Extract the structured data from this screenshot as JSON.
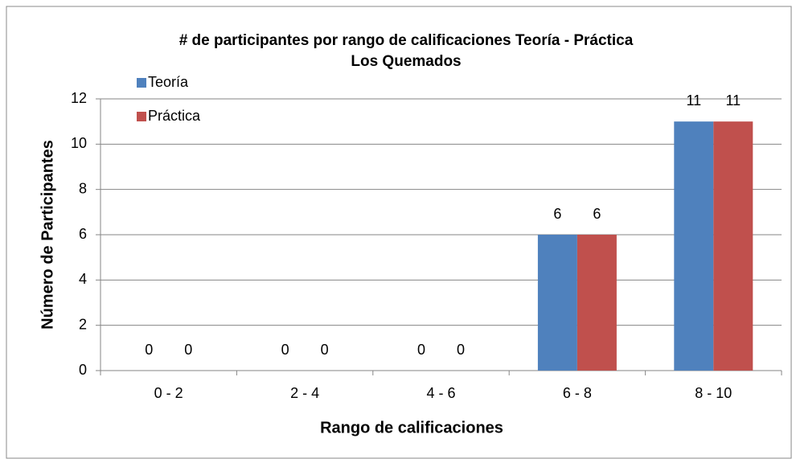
{
  "chart_data": {
    "type": "bar",
    "title": "# de participantes por rango de calificaciones Teoría - Práctica",
    "subtitle": "Los Quemados",
    "x_label": "Rango de calificaciones",
    "y_label": "Número de Participantes",
    "categories": [
      "0 - 2",
      "2 - 4",
      "4 - 6",
      "6 - 8",
      "8 - 10"
    ],
    "series": [
      {
        "name": "Teoría",
        "color": "#4f81bd",
        "values": [
          0,
          0,
          0,
          6,
          11
        ]
      },
      {
        "name": "Práctica",
        "color": "#c0504d",
        "values": [
          0,
          0,
          0,
          6,
          11
        ]
      }
    ],
    "ylim": [
      0,
      12
    ],
    "yticks": [
      0,
      2,
      4,
      6,
      8,
      10,
      12
    ],
    "grid": true,
    "legend": "top-left"
  }
}
